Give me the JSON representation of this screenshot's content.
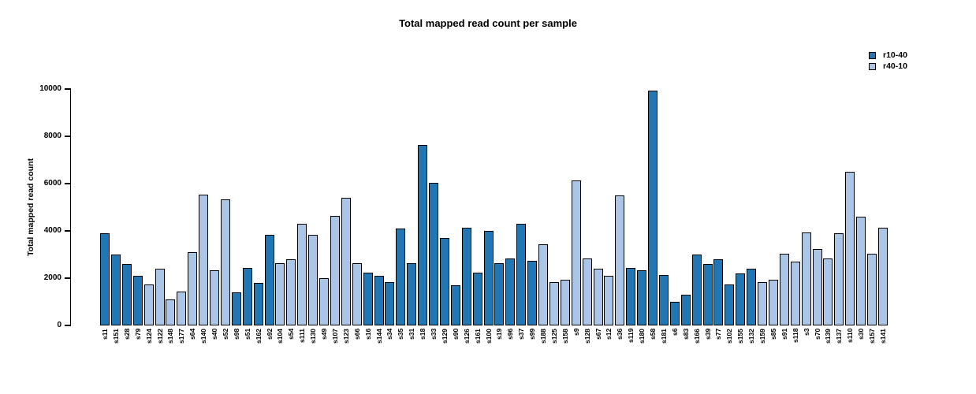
{
  "chart_data": {
    "type": "bar",
    "title": "Total mapped read count per sample",
    "xlabel": "",
    "ylabel": "Total mapped read count",
    "ylim": [
      0,
      10000
    ],
    "yticks": [
      0,
      2000,
      4000,
      6000,
      8000,
      10000
    ],
    "grid": false,
    "legend_position": "top-right",
    "bar_border_color": "#000000",
    "legend": [
      {
        "name": "r10-40",
        "color": "#2077b4"
      },
      {
        "name": "r40-10",
        "color": "#aac5e6"
      }
    ],
    "categories": [
      "s11",
      "s151",
      "s28",
      "s79",
      "s124",
      "s122",
      "s148",
      "s177",
      "s64",
      "s140",
      "s40",
      "s52",
      "s98",
      "s51",
      "s162",
      "s92",
      "s104",
      "s54",
      "s111",
      "s130",
      "s49",
      "s107",
      "s123",
      "s66",
      "s16",
      "s144",
      "s34",
      "s35",
      "s31",
      "s18",
      "s33",
      "s129",
      "s90",
      "s126",
      "s161",
      "s100",
      "s19",
      "s96",
      "s37",
      "s99",
      "s188",
      "s125",
      "s158",
      "s9",
      "s128",
      "s67",
      "s12",
      "s36",
      "s119",
      "s180",
      "s58",
      "s181",
      "s6",
      "s83",
      "s166",
      "s39",
      "s77",
      "s102",
      "s155",
      "s132",
      "s159",
      "s85",
      "s91",
      "s118",
      "s3",
      "s70",
      "s139",
      "s137",
      "s110",
      "s30",
      "s157",
      "s141"
    ],
    "values": [
      3900,
      3000,
      2600,
      2100,
      1750,
      2400,
      1100,
      1450,
      3100,
      5550,
      2350,
      5350,
      1400,
      2450,
      1800,
      3850,
      2650,
      2800,
      4300,
      3850,
      2000,
      4650,
      5400,
      2650,
      2250,
      2100,
      1850,
      4100,
      2650,
      7650,
      6050,
      3700,
      1700,
      4150,
      2250,
      4000,
      2650,
      2850,
      4300,
      2750,
      3450,
      1850,
      1950,
      6150,
      2850,
      2400,
      2100,
      5500,
      2450,
      2350,
      9950,
      2150,
      1000,
      1300,
      3000,
      2600,
      2800,
      1750,
      2200,
      2400,
      1850,
      1950,
      3050,
      2700,
      3950,
      3250,
      2850,
      3900,
      6500,
      4600,
      3050,
      4150
    ],
    "bar_series": [
      "r10-40",
      "r10-40",
      "r10-40",
      "r10-40",
      "r40-10",
      "r40-10",
      "r40-10",
      "r40-10",
      "r40-10",
      "r40-10",
      "r40-10",
      "r40-10",
      "r10-40",
      "r10-40",
      "r10-40",
      "r10-40",
      "r40-10",
      "r40-10",
      "r40-10",
      "r40-10",
      "r40-10",
      "r40-10",
      "r40-10",
      "r40-10",
      "r10-40",
      "r10-40",
      "r10-40",
      "r10-40",
      "r10-40",
      "r10-40",
      "r10-40",
      "r10-40",
      "r10-40",
      "r10-40",
      "r10-40",
      "r10-40",
      "r10-40",
      "r10-40",
      "r10-40",
      "r10-40",
      "r40-10",
      "r40-10",
      "r40-10",
      "r40-10",
      "r40-10",
      "r40-10",
      "r40-10",
      "r40-10",
      "r10-40",
      "r10-40",
      "r10-40",
      "r10-40",
      "r10-40",
      "r10-40",
      "r10-40",
      "r10-40",
      "r10-40",
      "r10-40",
      "r10-40",
      "r10-40",
      "r40-10",
      "r40-10",
      "r40-10",
      "r40-10",
      "r40-10",
      "r40-10",
      "r40-10",
      "r40-10",
      "r40-10",
      "r40-10",
      "r40-10",
      "r40-10"
    ]
  }
}
